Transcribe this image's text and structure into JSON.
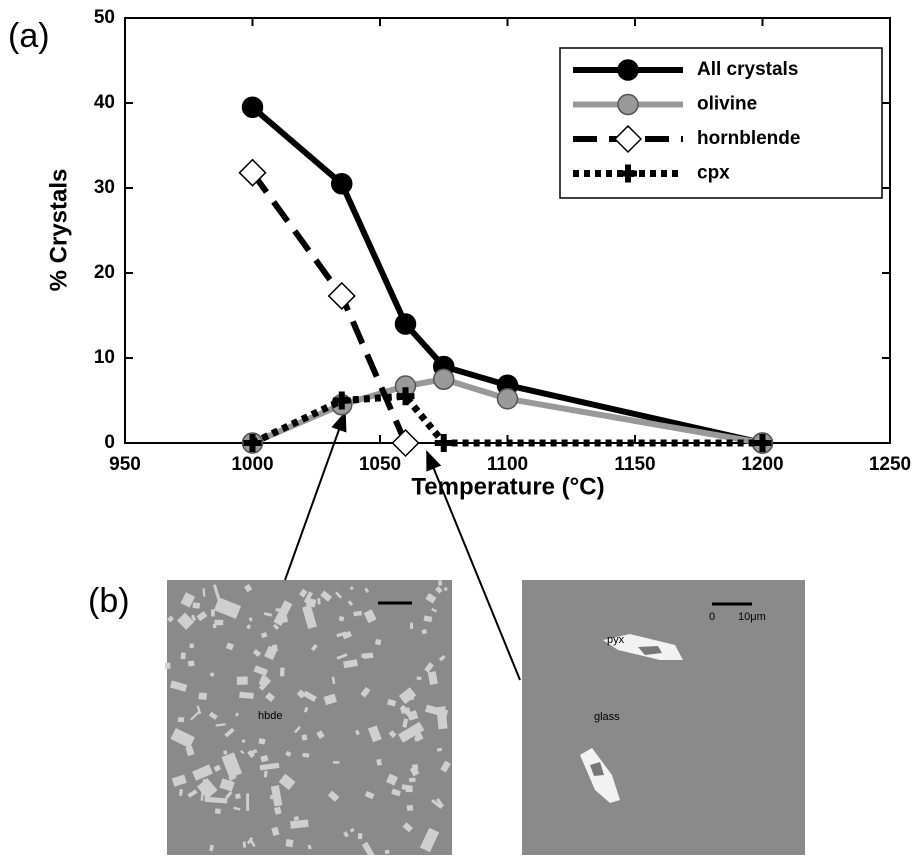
{
  "chart_data": {
    "type": "line",
    "xlabel": "Temperature (°C)",
    "ylabel": "% Crystals",
    "xlim": [
      950,
      1250
    ],
    "xticks": [
      950,
      1000,
      1050,
      1100,
      1150,
      1200,
      1250
    ],
    "ylim": [
      0,
      50
    ],
    "yticks": [
      0,
      10,
      20,
      30,
      40,
      50
    ],
    "legend": "upper right",
    "series": [
      {
        "name": "All crystals",
        "color": "#000000",
        "x": [
          1000,
          1035,
          1060,
          1075,
          1100,
          1200
        ],
        "values": [
          39.5,
          30.5,
          14,
          9,
          6.8,
          0
        ]
      },
      {
        "name": "olivine",
        "color": "#999999",
        "x": [
          1000,
          1035,
          1060,
          1075,
          1100,
          1200
        ],
        "values": [
          0,
          4.5,
          6.7,
          7.5,
          5.2,
          0
        ]
      },
      {
        "name": "hornblende",
        "color": "#000000",
        "x": [
          1000,
          1035,
          1060
        ],
        "values": [
          31.8,
          17.3,
          0
        ]
      },
      {
        "name": "cpx",
        "color": "#000000",
        "x": [
          1000,
          1035,
          1060,
          1075,
          1200
        ],
        "values": [
          0,
          5,
          5.5,
          0,
          0
        ]
      }
    ]
  },
  "panels": {
    "a": "(a)",
    "b": "(b)"
  },
  "micrographs": {
    "left": "hbde",
    "right_mineral": "pyx",
    "right_matrix": "glass",
    "scale_zero": "0",
    "scale_length": "10μm"
  }
}
